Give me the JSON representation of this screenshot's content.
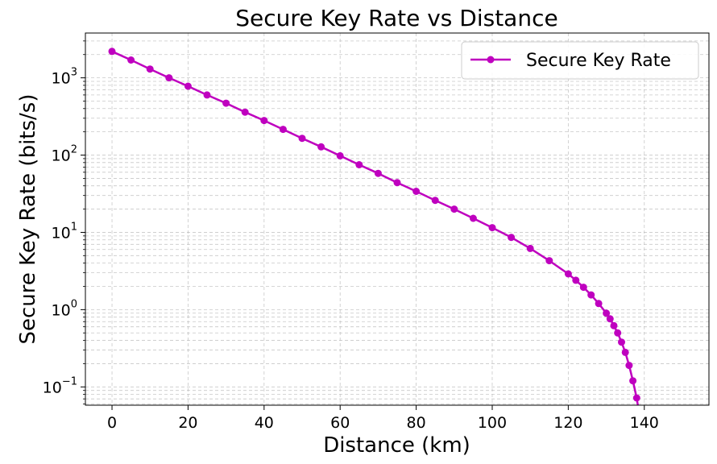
{
  "chart_data": {
    "type": "line",
    "title": "Secure Key Rate vs Distance",
    "xlabel": "Distance (km)",
    "ylabel": "Secure Key Rate (bits/s)",
    "xlim": [
      -7,
      157
    ],
    "ylim": [
      0.058,
      3800
    ],
    "yscale": "log",
    "grid": true,
    "legend_position": "top-right",
    "x_ticks": [
      0,
      20,
      40,
      60,
      80,
      100,
      120,
      140
    ],
    "y_ticks": [
      {
        "value": 0.1,
        "base": "10",
        "exp": "−1"
      },
      {
        "value": 1,
        "base": "10",
        "exp": "0"
      },
      {
        "value": 10,
        "base": "10",
        "exp": "1"
      },
      {
        "value": 100,
        "base": "10",
        "exp": "2"
      },
      {
        "value": 1000,
        "base": "10",
        "exp": "3"
      }
    ],
    "series": [
      {
        "name": "Secure Key Rate",
        "color": "#bf00bf",
        "marker": "circle",
        "x": [
          0,
          5,
          10,
          15,
          20,
          25,
          30,
          35,
          40,
          45,
          50,
          55,
          60,
          65,
          70,
          75,
          80,
          85,
          90,
          95,
          100,
          105,
          110,
          115,
          120,
          122,
          124,
          126,
          128,
          130,
          131,
          132,
          133,
          134,
          135,
          136,
          137,
          138,
          139
        ],
        "y": [
          2200,
          1700,
          1300,
          1000,
          780,
          600,
          470,
          360,
          280,
          215,
          165,
          128,
          98,
          75,
          58,
          44,
          34,
          26,
          20,
          15.2,
          11.5,
          8.6,
          6.2,
          4.3,
          2.9,
          2.4,
          1.95,
          1.55,
          1.2,
          0.9,
          0.76,
          0.62,
          0.5,
          0.38,
          0.28,
          0.19,
          0.12,
          0.072,
          0.035
        ]
      }
    ]
  }
}
